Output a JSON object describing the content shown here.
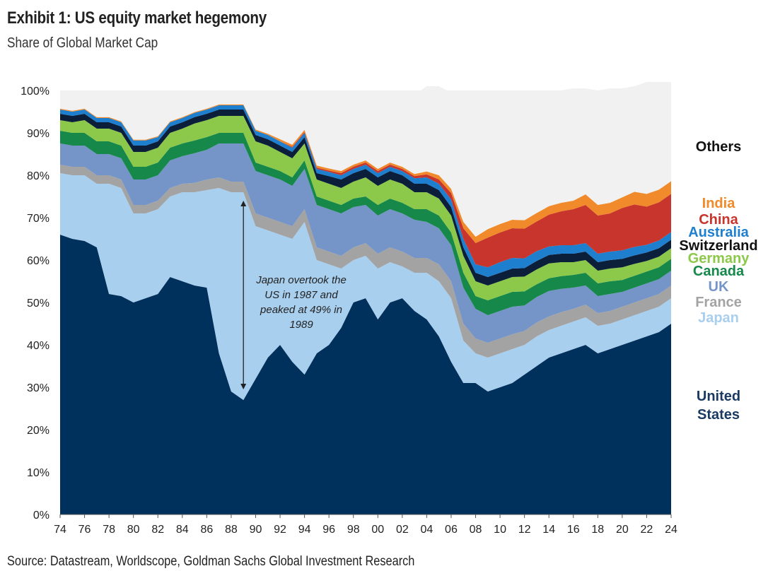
{
  "title": "Exhibit 1: US equity market hegemony",
  "subtitle": "Share of Global Market Cap",
  "source": "Source: Datastream, Worldscope, Goldman Sachs Global Investment Research",
  "annotation": [
    "Japan overtook the",
    "US in 1987 and",
    "peaked at 49% in",
    "1989"
  ],
  "chart_data": {
    "type": "area",
    "stacked": true,
    "title": "Exhibit 1: US equity market hegemony",
    "ylabel": "Share of Global Market Cap",
    "xlabel": "",
    "x": [
      1974,
      1975,
      1976,
      1977,
      1978,
      1979,
      1980,
      1981,
      1982,
      1983,
      1984,
      1985,
      1986,
      1987,
      1988,
      1989,
      1990,
      1991,
      1992,
      1993,
      1994,
      1995,
      1996,
      1997,
      1998,
      1999,
      2000,
      2001,
      2002,
      2003,
      2004,
      2005,
      2006,
      2007,
      2008,
      2009,
      2010,
      2011,
      2012,
      2013,
      2014,
      2015,
      2016,
      2017,
      2018,
      2019,
      2020,
      2021,
      2022,
      2023,
      2024
    ],
    "x_ticks": [
      "74",
      "76",
      "78",
      "80",
      "82",
      "84",
      "86",
      "88",
      "90",
      "92",
      "94",
      "96",
      "98",
      "00",
      "02",
      "04",
      "06",
      "08",
      "10",
      "12",
      "14",
      "16",
      "18",
      "20",
      "22",
      "24"
    ],
    "y_ticks": [
      "0%",
      "10%",
      "20%",
      "30%",
      "40%",
      "50%",
      "60%",
      "70%",
      "80%",
      "90%",
      "100%"
    ],
    "ylim": [
      0,
      100
    ],
    "series": [
      {
        "name": "United States",
        "label_lines": [
          "United",
          "States"
        ],
        "color": "#00305c",
        "label_color": "#1b3a63",
        "values": [
          66,
          65,
          64.5,
          63,
          52,
          51.5,
          50,
          51,
          52,
          56,
          55,
          54,
          53.5,
          38,
          29,
          27,
          32,
          37,
          40,
          36,
          33,
          38,
          40,
          44,
          50,
          51,
          46,
          50,
          51,
          48,
          46,
          42,
          36,
          31,
          31,
          29,
          30,
          31,
          33,
          35,
          37,
          38,
          39,
          40,
          38,
          39,
          40,
          41,
          42,
          43,
          45
        ]
      },
      {
        "name": "Japan",
        "color": "#a9cfee",
        "label_color": "#a9cfee",
        "values": [
          14.5,
          15,
          15.5,
          15,
          26,
          25.5,
          21,
          20,
          20,
          19,
          21,
          22,
          23,
          39,
          47,
          49,
          36,
          30,
          26,
          29,
          36,
          22,
          19,
          14,
          10,
          10,
          12,
          9.5,
          7.5,
          9,
          11,
          13,
          15,
          10,
          7,
          8,
          8,
          8,
          7,
          7,
          6.5,
          6.5,
          6.5,
          6.5,
          6.5,
          6,
          6,
          6,
          6,
          6,
          6
        ]
      },
      {
        "name": "France",
        "color": "#a3a3a3",
        "label_color": "#a3a3a3",
        "values": [
          2.0,
          2.0,
          2.0,
          2.0,
          2.0,
          2.0,
          2.0,
          2.0,
          2.0,
          2.0,
          2.0,
          2.2,
          2.5,
          2.5,
          2.5,
          2.5,
          3.0,
          3.0,
          3.0,
          3.0,
          3.0,
          3.0,
          3.0,
          3.0,
          3.0,
          3.0,
          3.5,
          3.5,
          3.5,
          3.5,
          3.5,
          4.0,
          4.0,
          4.0,
          3.5,
          3.5,
          3.5,
          3.5,
          3.3,
          3.3,
          3.2,
          3.2,
          3.0,
          3.0,
          3.0,
          3.0,
          3.0,
          3.0,
          3.0,
          3.0,
          3.0
        ]
      },
      {
        "name": "UK",
        "color": "#7595c9",
        "label_color": "#7595c9",
        "values": [
          5.0,
          5.0,
          5.0,
          5.0,
          5.0,
          5.0,
          6.0,
          6.0,
          6.0,
          6.5,
          6.5,
          7.0,
          7.0,
          8.0,
          9.0,
          9.0,
          10.0,
          10.0,
          10.0,
          9.5,
          9.5,
          10.0,
          10.0,
          10.0,
          9.5,
          9.0,
          9.0,
          9.0,
          9.0,
          9.0,
          8.5,
          8.5,
          8.5,
          8.5,
          7.0,
          6.5,
          6.5,
          6.5,
          6.0,
          6.0,
          6.0,
          5.5,
          5.0,
          4.5,
          4.0,
          4.0,
          3.5,
          3.5,
          3.5,
          3.5,
          3.5
        ]
      },
      {
        "name": "Canada",
        "color": "#16884a",
        "label_color": "#16884a",
        "values": [
          3.0,
          3.0,
          3.0,
          3.0,
          3.0,
          3.0,
          3.0,
          3.0,
          3.0,
          3.0,
          3.0,
          3.0,
          3.0,
          2.5,
          2.5,
          2.5,
          2.0,
          2.0,
          2.0,
          2.0,
          2.0,
          2.0,
          2.0,
          2.0,
          2.0,
          2.0,
          2.5,
          2.5,
          2.5,
          2.5,
          3.0,
          3.0,
          3.0,
          3.5,
          3.0,
          3.5,
          3.5,
          3.5,
          3.3,
          3.0,
          3.0,
          3.0,
          3.0,
          3.0,
          3.0,
          3.0,
          2.8,
          2.8,
          2.8,
          2.8,
          2.8
        ]
      },
      {
        "name": "Germany",
        "color": "#8cc94a",
        "label_color": "#8cc94a",
        "values": [
          2.5,
          2.5,
          3.0,
          3.0,
          3.0,
          3.0,
          3.5,
          3.5,
          3.5,
          3.5,
          3.5,
          4.0,
          4.0,
          4.0,
          4.0,
          4.0,
          5.0,
          5.0,
          4.5,
          4.5,
          4.0,
          4.0,
          4.0,
          4.0,
          4.0,
          4.5,
          4.5,
          4.5,
          4.5,
          4.0,
          4.0,
          4.0,
          4.0,
          4.0,
          3.5,
          3.5,
          3.5,
          3.5,
          3.5,
          3.5,
          3.5,
          3.3,
          3.0,
          3.0,
          3.0,
          3.0,
          3.0,
          2.8,
          2.5,
          2.5,
          2.5
        ]
      },
      {
        "name": "Switzerland",
        "color": "#0c1f3a",
        "label_color": "#111111",
        "values": [
          1.5,
          1.5,
          1.5,
          1.5,
          1.5,
          1.5,
          1.5,
          1.5,
          1.5,
          1.5,
          1.5,
          1.5,
          1.5,
          1.5,
          1.5,
          1.5,
          1.5,
          1.5,
          1.5,
          1.5,
          1.5,
          1.5,
          1.8,
          2.0,
          2.0,
          2.0,
          2.0,
          2.0,
          2.0,
          2.0,
          2.0,
          2.0,
          2.0,
          2.0,
          2.0,
          2.0,
          2.0,
          2.0,
          2.0,
          2.0,
          2.0,
          2.0,
          2.0,
          2.0,
          2.0,
          2.0,
          2.0,
          2.0,
          2.0,
          2.0,
          2.0
        ]
      },
      {
        "name": "Australia",
        "color": "#1f7fcf",
        "label_color": "#1f7fcf",
        "values": [
          1.0,
          1.0,
          1.0,
          1.0,
          1.0,
          1.0,
          1.2,
          1.2,
          1.0,
          1.0,
          1.0,
          1.0,
          1.0,
          1.0,
          1.0,
          1.0,
          1.0,
          1.0,
          1.0,
          1.0,
          1.0,
          1.0,
          1.0,
          1.0,
          1.0,
          1.0,
          1.0,
          1.0,
          1.0,
          1.3,
          1.5,
          1.5,
          1.8,
          2.0,
          2.0,
          2.3,
          2.5,
          2.5,
          2.3,
          2.3,
          2.0,
          2.0,
          2.0,
          2.0,
          2.0,
          2.0,
          2.0,
          2.0,
          1.8,
          1.8,
          1.8
        ]
      },
      {
        "name": "China",
        "color": "#c8352c",
        "label_color": "#c8352c",
        "values": [
          0,
          0,
          0,
          0,
          0,
          0,
          0,
          0,
          0,
          0,
          0,
          0,
          0,
          0,
          0,
          0,
          0,
          0,
          0,
          0.2,
          0.2,
          0.3,
          0.3,
          0.5,
          0.5,
          0.5,
          0.5,
          0.5,
          0.5,
          0.5,
          0.7,
          1.0,
          1.5,
          2.5,
          5.0,
          7.0,
          7.0,
          7.0,
          7.0,
          7.0,
          7.5,
          8.0,
          8.5,
          9.0,
          9.0,
          9.0,
          10.0,
          10.0,
          9.0,
          9.0,
          9.0
        ]
      },
      {
        "name": "India",
        "color": "#f08a2b",
        "label_color": "#f08a2b",
        "values": [
          0.2,
          0.2,
          0.2,
          0.2,
          0.2,
          0.2,
          0.2,
          0.2,
          0.2,
          0.2,
          0.2,
          0.2,
          0.2,
          0.2,
          0.2,
          0.2,
          0.3,
          0.3,
          0.5,
          0.5,
          0.5,
          0.5,
          0.5,
          0.5,
          0.5,
          0.5,
          0.5,
          0.5,
          0.5,
          0.5,
          0.7,
          1.0,
          1.0,
          1.5,
          1.5,
          2.0,
          2.0,
          2.0,
          2.0,
          2.0,
          2.0,
          2.0,
          2.0,
          2.5,
          2.5,
          2.5,
          2.5,
          3.0,
          3.0,
          3.0,
          3.0
        ]
      },
      {
        "name": "Others",
        "color": "#f1f1f1",
        "label_color": "#111111",
        "values": [
          4.3,
          4.8,
          4.3,
          5.3,
          6.3,
          6.8,
          10.6,
          9.6,
          10.8,
          6.5,
          5.8,
          5.1,
          4.3,
          1.3,
          1.3,
          1.3,
          8.2,
          8.2,
          6.5,
          11.5,
          7.5,
          15.2,
          15.4,
          16.0,
          15.0,
          15.5,
          17.5,
          16.5,
          17.0,
          18.7,
          20.1,
          21.0,
          22.7,
          31.0,
          34.5,
          32.7,
          31.5,
          30.5,
          29.6,
          28.9,
          27.3,
          26.5,
          26.5,
          25.0,
          27.0,
          27.0,
          25.7,
          24.9,
          26.4,
          25.4,
          23.4
        ]
      }
    ]
  }
}
